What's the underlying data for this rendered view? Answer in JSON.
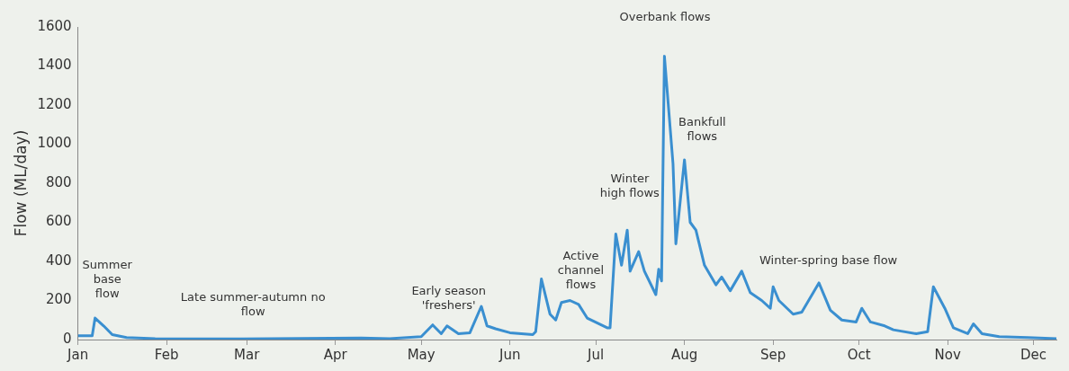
{
  "chart_data": {
    "type": "line",
    "ylabel": "Flow (ML/day)",
    "grid": false,
    "legend": false,
    "marker": "none",
    "line_style": "solid",
    "x": [
      "--01-01",
      "--01-06",
      "--01-07",
      "--01-10",
      "--01-13",
      "--01-18",
      "--01-28",
      "--02-27",
      "--04-10",
      "--04-20",
      "--05-01",
      "--05-05",
      "--05-08",
      "--05-10",
      "--05-14",
      "--05-18",
      "--05-22",
      "--05-24",
      "--05-27",
      "--06-01",
      "--06-09",
      "--06-10",
      "--06-12",
      "--06-15",
      "--06-17",
      "--06-19",
      "--06-22",
      "--06-25",
      "--06-28",
      "--07-05",
      "--07-06",
      "--07-08",
      "--07-10",
      "--07-12",
      "--07-13",
      "--07-16",
      "--07-18",
      "--07-22",
      "--07-23",
      "--07-24",
      "--07-25",
      "--07-28",
      "--07-29",
      "--08-01",
      "--08-03",
      "--08-05",
      "--08-08",
      "--08-12",
      "--08-14",
      "--08-17",
      "--08-21",
      "--08-24",
      "--08-28",
      "--08-31",
      "--09-01",
      "--09-03",
      "--09-08",
      "--09-11",
      "--09-17",
      "--09-21",
      "--09-25",
      "--09-30",
      "--10-02",
      "--10-05",
      "--10-10",
      "--10-13",
      "--10-21",
      "--10-25",
      "--10-27",
      "--10-31",
      "--11-03",
      "--11-08",
      "--11-10",
      "--11-13",
      "--11-19",
      "--11-29",
      "--12-09"
    ],
    "series": [
      {
        "color": "#3a8fd0",
        "values": [
          20,
          20,
          110,
          70,
          25,
          10,
          5,
          3,
          8,
          5,
          15,
          75,
          30,
          70,
          30,
          35,
          170,
          70,
          55,
          35,
          25,
          40,
          310,
          130,
          100,
          190,
          200,
          180,
          110,
          60,
          60,
          540,
          380,
          560,
          350,
          450,
          350,
          230,
          360,
          300,
          1450,
          900,
          490,
          920,
          600,
          560,
          380,
          280,
          320,
          250,
          350,
          240,
          200,
          160,
          270,
          200,
          130,
          140,
          290,
          150,
          100,
          90,
          160,
          90,
          70,
          50,
          30,
          40,
          270,
          160,
          60,
          30,
          80,
          30,
          15,
          10,
          5
        ]
      }
    ],
    "xlim": [
      "--01-01",
      "--12-09"
    ],
    "xticks": [
      {
        "value": "--01-01",
        "label": "Jan"
      },
      {
        "value": "--02-01",
        "label": "Feb"
      },
      {
        "value": "--03-01",
        "label": "Mar"
      },
      {
        "value": "--04-01",
        "label": "Apr"
      },
      {
        "value": "--05-01",
        "label": "May"
      },
      {
        "value": "--06-01",
        "label": "Jun"
      },
      {
        "value": "--07-01",
        "label": "Jul"
      },
      {
        "value": "--08-01",
        "label": "Aug"
      },
      {
        "value": "--09-01",
        "label": "Sep"
      },
      {
        "value": "--10-01",
        "label": "Oct"
      },
      {
        "value": "--11-01",
        "label": "Nov"
      },
      {
        "value": "--12-01",
        "label": "Dec"
      }
    ],
    "ylim": [
      0,
      1600
    ],
    "yticks": [
      0,
      200,
      400,
      600,
      800,
      1000,
      1200,
      1400,
      1600
    ],
    "annotations": [
      "Summer\nbase\nflow",
      "Late summer-autumn no\nflow",
      "Early season\n'freshers'",
      "Active\nchannel\nflows",
      "Winter\nhigh flows",
      "Overbank flows",
      "Bankfull\nflows",
      "Winter-spring base flow"
    ]
  }
}
